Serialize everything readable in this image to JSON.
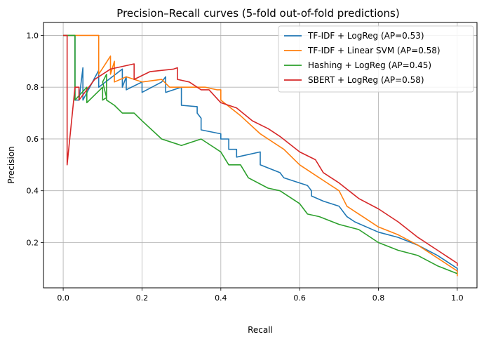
{
  "chart_data": {
    "type": "line",
    "title": "Precision–Recall curves (5-fold out-of-fold predictions)",
    "xlabel": "Recall",
    "ylabel": "Precision",
    "xlim": [
      -0.05,
      1.05
    ],
    "ylim": [
      0.025,
      1.05
    ],
    "xticks": [
      0.0,
      0.2,
      0.4,
      0.6,
      0.8,
      1.0
    ],
    "xtick_labels": [
      "0.0",
      "0.2",
      "0.4",
      "0.6",
      "0.8",
      "1.0"
    ],
    "yticks": [
      0.2,
      0.4,
      0.6,
      0.8,
      1.0
    ],
    "ytick_labels": [
      "0.2",
      "0.4",
      "0.6",
      "0.8",
      "1.0"
    ],
    "grid": true,
    "legend_position": "top-right",
    "series": [
      {
        "name": "TF-IDF + LogReg  (AP=0.53)",
        "color": "#1f77b4",
        "points": [
          [
            0,
            1.0
          ],
          [
            0.03,
            1.0
          ],
          [
            0.03,
            0.75
          ],
          [
            0.04,
            0.75
          ],
          [
            0.05,
            0.875
          ],
          [
            0.05,
            0.75
          ],
          [
            0.09,
            0.865
          ],
          [
            0.09,
            0.8
          ],
          [
            0.15,
            0.87
          ],
          [
            0.15,
            0.8
          ],
          [
            0.16,
            0.84
          ],
          [
            0.16,
            0.79
          ],
          [
            0.2,
            0.82
          ],
          [
            0.2,
            0.78
          ],
          [
            0.25,
            0.82
          ],
          [
            0.26,
            0.84
          ],
          [
            0.26,
            0.78
          ],
          [
            0.3,
            0.8
          ],
          [
            0.3,
            0.73
          ],
          [
            0.34,
            0.725
          ],
          [
            0.34,
            0.7
          ],
          [
            0.35,
            0.68
          ],
          [
            0.35,
            0.635
          ],
          [
            0.4,
            0.62
          ],
          [
            0.4,
            0.6
          ],
          [
            0.42,
            0.6
          ],
          [
            0.42,
            0.56
          ],
          [
            0.44,
            0.56
          ],
          [
            0.44,
            0.53
          ],
          [
            0.5,
            0.55
          ],
          [
            0.5,
            0.5
          ],
          [
            0.55,
            0.47
          ],
          [
            0.56,
            0.45
          ],
          [
            0.6,
            0.43
          ],
          [
            0.62,
            0.42
          ],
          [
            0.63,
            0.4
          ],
          [
            0.63,
            0.38
          ],
          [
            0.66,
            0.36
          ],
          [
            0.7,
            0.34
          ],
          [
            0.72,
            0.3
          ],
          [
            0.74,
            0.28
          ],
          [
            0.8,
            0.24
          ],
          [
            0.85,
            0.22
          ],
          [
            0.9,
            0.19
          ],
          [
            0.95,
            0.15
          ],
          [
            1.0,
            0.1
          ],
          [
            1.0,
            0.085
          ]
        ]
      },
      {
        "name": "TF-IDF + Linear SVM  (AP=0.58)",
        "color": "#ff7f0e",
        "points": [
          [
            0,
            1.0
          ],
          [
            0.09,
            1.0
          ],
          [
            0.09,
            0.85
          ],
          [
            0.12,
            0.92
          ],
          [
            0.12,
            0.85
          ],
          [
            0.13,
            0.9
          ],
          [
            0.13,
            0.82
          ],
          [
            0.16,
            0.84
          ],
          [
            0.2,
            0.82
          ],
          [
            0.25,
            0.83
          ],
          [
            0.27,
            0.8
          ],
          [
            0.3,
            0.8
          ],
          [
            0.36,
            0.8
          ],
          [
            0.39,
            0.79
          ],
          [
            0.4,
            0.79
          ],
          [
            0.4,
            0.75
          ],
          [
            0.45,
            0.69
          ],
          [
            0.5,
            0.62
          ],
          [
            0.52,
            0.6
          ],
          [
            0.56,
            0.56
          ],
          [
            0.6,
            0.5
          ],
          [
            0.62,
            0.48
          ],
          [
            0.66,
            0.44
          ],
          [
            0.7,
            0.4
          ],
          [
            0.72,
            0.34
          ],
          [
            0.76,
            0.3
          ],
          [
            0.8,
            0.26
          ],
          [
            0.85,
            0.23
          ],
          [
            0.9,
            0.19
          ],
          [
            0.95,
            0.14
          ],
          [
            1.0,
            0.09
          ],
          [
            1.0,
            0.07
          ]
        ]
      },
      {
        "name": "Hashing + LogReg  (AP=0.45)",
        "color": "#2ca02c",
        "points": [
          [
            0,
            1.0
          ],
          [
            0.03,
            1.0
          ],
          [
            0.03,
            0.75
          ],
          [
            0.06,
            0.8
          ],
          [
            0.06,
            0.74
          ],
          [
            0.1,
            0.8
          ],
          [
            0.1,
            0.75
          ],
          [
            0.11,
            0.76
          ],
          [
            0.1,
            0.82
          ],
          [
            0.11,
            0.85
          ],
          [
            0.11,
            0.75
          ],
          [
            0.13,
            0.73
          ],
          [
            0.15,
            0.7
          ],
          [
            0.18,
            0.7
          ],
          [
            0.2,
            0.67
          ],
          [
            0.25,
            0.6
          ],
          [
            0.3,
            0.575
          ],
          [
            0.35,
            0.6
          ],
          [
            0.38,
            0.57
          ],
          [
            0.4,
            0.55
          ],
          [
            0.42,
            0.5
          ],
          [
            0.45,
            0.5
          ],
          [
            0.47,
            0.45
          ],
          [
            0.52,
            0.41
          ],
          [
            0.55,
            0.4
          ],
          [
            0.6,
            0.35
          ],
          [
            0.62,
            0.31
          ],
          [
            0.65,
            0.3
          ],
          [
            0.7,
            0.27
          ],
          [
            0.75,
            0.25
          ],
          [
            0.8,
            0.2
          ],
          [
            0.85,
            0.17
          ],
          [
            0.9,
            0.15
          ],
          [
            0.95,
            0.11
          ],
          [
            1.0,
            0.08
          ],
          [
            1.0,
            0.08
          ]
        ]
      },
      {
        "name": "SBERT + LogReg  (AP=0.58)",
        "color": "#d62728",
        "points": [
          [
            0,
            1.0
          ],
          [
            0.01,
            1.0
          ],
          [
            0.01,
            0.5
          ],
          [
            0.03,
            0.8
          ],
          [
            0.04,
            0.8
          ],
          [
            0.04,
            0.75
          ],
          [
            0.08,
            0.83
          ],
          [
            0.12,
            0.87
          ],
          [
            0.18,
            0.89
          ],
          [
            0.18,
            0.83
          ],
          [
            0.22,
            0.86
          ],
          [
            0.28,
            0.87
          ],
          [
            0.29,
            0.875
          ],
          [
            0.29,
            0.83
          ],
          [
            0.32,
            0.82
          ],
          [
            0.35,
            0.79
          ],
          [
            0.37,
            0.79
          ],
          [
            0.4,
            0.74
          ],
          [
            0.44,
            0.72
          ],
          [
            0.48,
            0.67
          ],
          [
            0.52,
            0.64
          ],
          [
            0.55,
            0.61
          ],
          [
            0.6,
            0.55
          ],
          [
            0.64,
            0.52
          ],
          [
            0.66,
            0.47
          ],
          [
            0.7,
            0.43
          ],
          [
            0.75,
            0.37
          ],
          [
            0.8,
            0.33
          ],
          [
            0.85,
            0.28
          ],
          [
            0.9,
            0.22
          ],
          [
            0.95,
            0.17
          ],
          [
            1.0,
            0.12
          ],
          [
            1.0,
            0.11
          ]
        ]
      }
    ]
  }
}
